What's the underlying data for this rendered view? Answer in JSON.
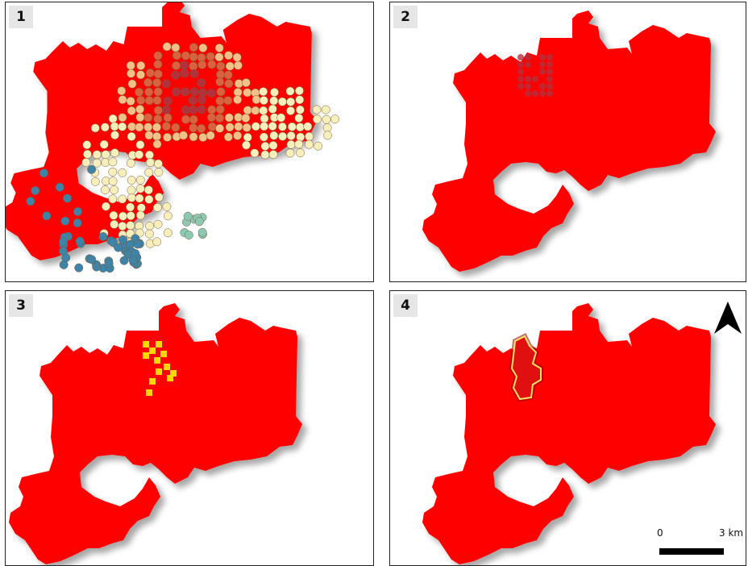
{
  "panels": [
    {
      "number": "1"
    },
    {
      "number": "2"
    },
    {
      "number": "3"
    },
    {
      "number": "4"
    }
  ],
  "colors": {
    "region_fill": "#ff0000",
    "dot_high": "#d9623f",
    "dot_mid": "#f3c088",
    "dot_low": "#f6eebb",
    "dot_outside": "#3d84a8",
    "dot_teal": "#8cc9b3",
    "cluster_dark": "#b3303d",
    "selected_cells": "#ffd700",
    "outline": "#ffe066"
  },
  "icons": {
    "north_arrow": "north-arrow-icon"
  },
  "scale_bar": {
    "start_label": "0",
    "end_label": "3 km"
  }
}
